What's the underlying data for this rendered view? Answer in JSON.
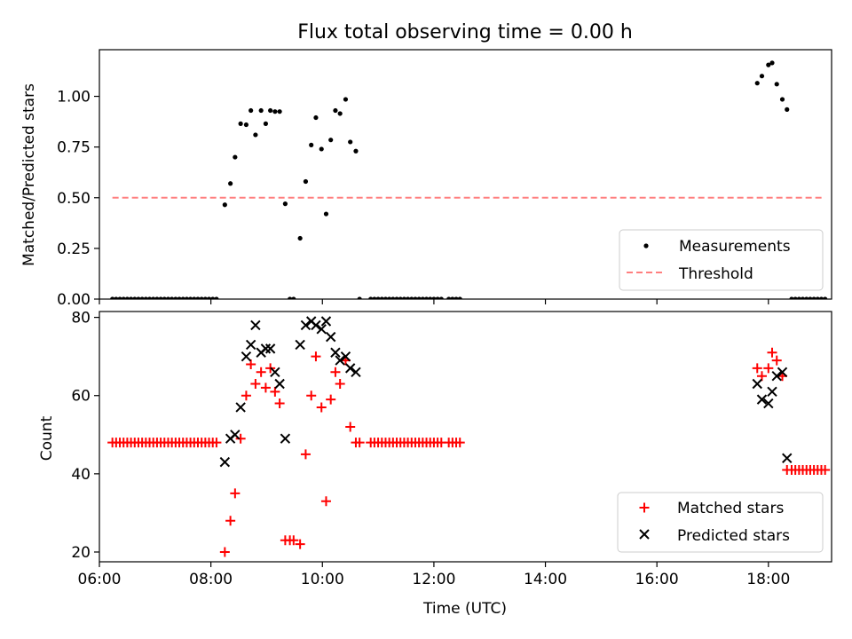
{
  "chart_data": [
    {
      "type": "scatter",
      "panel": "top",
      "title": "Flux total observing time = 0.00 h",
      "xlabel": "",
      "ylabel": "Matched/Predicted stars",
      "xlim": [
        "06:00",
        "19:08"
      ],
      "ylim": [
        0.0,
        1.23
      ],
      "yticks": [
        "0.00",
        "0.25",
        "0.50",
        "0.75",
        "1.00"
      ],
      "ytick_values": [
        0.0,
        0.25,
        0.5,
        0.75,
        1.0
      ],
      "grid": false,
      "legend_position": "lower-right",
      "legend": [
        "Measurements",
        "Threshold"
      ],
      "series": [
        {
          "name": "Measurements",
          "style": "dot",
          "color": "#000000",
          "points": [
            [
              "06:14",
              0
            ],
            [
              "06:18",
              0
            ],
            [
              "06:22",
              0
            ],
            [
              "06:26",
              0
            ],
            [
              "06:30",
              0
            ],
            [
              "06:34",
              0
            ],
            [
              "06:38",
              0
            ],
            [
              "06:42",
              0
            ],
            [
              "06:46",
              0
            ],
            [
              "06:50",
              0
            ],
            [
              "06:54",
              0
            ],
            [
              "06:58",
              0
            ],
            [
              "07:02",
              0
            ],
            [
              "07:06",
              0
            ],
            [
              "07:10",
              0
            ],
            [
              "07:14",
              0
            ],
            [
              "07:18",
              0
            ],
            [
              "07:22",
              0
            ],
            [
              "07:26",
              0
            ],
            [
              "07:30",
              0
            ],
            [
              "07:34",
              0
            ],
            [
              "07:38",
              0
            ],
            [
              "07:42",
              0
            ],
            [
              "07:46",
              0
            ],
            [
              "07:50",
              0
            ],
            [
              "07:54",
              0
            ],
            [
              "07:58",
              0
            ],
            [
              "08:02",
              0
            ],
            [
              "08:06",
              0
            ],
            [
              "08:15",
              0.465
            ],
            [
              "08:21",
              0.57
            ],
            [
              "08:26",
              0.7
            ],
            [
              "08:32",
              0.865
            ],
            [
              "08:38",
              0.86
            ],
            [
              "08:43",
              0.93
            ],
            [
              "08:48",
              0.81
            ],
            [
              "08:54",
              0.93
            ],
            [
              "08:59",
              0.865
            ],
            [
              "09:04",
              0.93
            ],
            [
              "09:09",
              0.925
            ],
            [
              "09:14",
              0.925
            ],
            [
              "09:20",
              0.47
            ],
            [
              "09:25",
              0
            ],
            [
              "09:29",
              0
            ],
            [
              "09:36",
              0.3
            ],
            [
              "09:42",
              0.58
            ],
            [
              "09:48",
              0.76
            ],
            [
              "09:53",
              0.895
            ],
            [
              "09:59",
              0.74
            ],
            [
              "10:04",
              0.42
            ],
            [
              "10:09",
              0.785
            ],
            [
              "10:14",
              0.93
            ],
            [
              "10:19",
              0.915
            ],
            [
              "10:25",
              0.985
            ],
            [
              "10:30",
              0.775
            ],
            [
              "10:36",
              0.73
            ],
            [
              "10:40",
              0
            ],
            [
              "10:52",
              0
            ],
            [
              "10:56",
              0
            ],
            [
              "11:00",
              0
            ],
            [
              "11:04",
              0
            ],
            [
              "11:08",
              0
            ],
            [
              "11:12",
              0
            ],
            [
              "11:16",
              0
            ],
            [
              "11:20",
              0
            ],
            [
              "11:24",
              0
            ],
            [
              "11:28",
              0
            ],
            [
              "11:32",
              0
            ],
            [
              "11:36",
              0
            ],
            [
              "11:40",
              0
            ],
            [
              "11:44",
              0
            ],
            [
              "11:48",
              0
            ],
            [
              "11:52",
              0
            ],
            [
              "11:56",
              0
            ],
            [
              "12:00",
              0
            ],
            [
              "12:04",
              0
            ],
            [
              "12:08",
              0
            ],
            [
              "12:16",
              0
            ],
            [
              "12:20",
              0
            ],
            [
              "12:24",
              0
            ],
            [
              "12:28",
              0
            ],
            [
              "17:48",
              1.065
            ],
            [
              "17:53",
              1.1
            ],
            [
              "18:00",
              1.155
            ],
            [
              "18:04",
              1.165
            ],
            [
              "18:09",
              1.06
            ],
            [
              "18:15",
              0.985
            ],
            [
              "18:20",
              0.935
            ],
            [
              "18:25",
              0
            ],
            [
              "18:29",
              0
            ],
            [
              "18:33",
              0
            ],
            [
              "18:37",
              0
            ],
            [
              "18:41",
              0
            ],
            [
              "18:45",
              0
            ],
            [
              "18:49",
              0
            ],
            [
              "18:53",
              0
            ],
            [
              "18:57",
              0
            ],
            [
              "19:01",
              0
            ]
          ]
        },
        {
          "name": "Threshold",
          "style": "dashed-line",
          "color": "#ff7f7f",
          "points": [
            [
              "06:14",
              0.5
            ],
            [
              "19:01",
              0.5
            ]
          ]
        }
      ]
    },
    {
      "type": "scatter",
      "panel": "bottom",
      "title": "",
      "xlabel": "Time (UTC)",
      "ylabel": "Count",
      "xlim": [
        "06:00",
        "19:08"
      ],
      "ylim": [
        17.5,
        81.5
      ],
      "xticks": [
        "06:00",
        "08:00",
        "10:00",
        "12:00",
        "14:00",
        "16:00",
        "18:00"
      ],
      "yticks": [
        "20",
        "40",
        "60",
        "80"
      ],
      "ytick_values": [
        20,
        40,
        60,
        80
      ],
      "grid": false,
      "legend_position": "lower-right",
      "legend": [
        "Matched stars",
        "Predicted stars"
      ],
      "series": [
        {
          "name": "Matched stars",
          "marker": "plus",
          "color": "#ff0000",
          "points": [
            [
              "06:14",
              48
            ],
            [
              "06:18",
              48
            ],
            [
              "06:22",
              48
            ],
            [
              "06:26",
              48
            ],
            [
              "06:30",
              48
            ],
            [
              "06:34",
              48
            ],
            [
              "06:38",
              48
            ],
            [
              "06:42",
              48
            ],
            [
              "06:46",
              48
            ],
            [
              "06:50",
              48
            ],
            [
              "06:54",
              48
            ],
            [
              "06:58",
              48
            ],
            [
              "07:02",
              48
            ],
            [
              "07:06",
              48
            ],
            [
              "07:10",
              48
            ],
            [
              "07:14",
              48
            ],
            [
              "07:18",
              48
            ],
            [
              "07:22",
              48
            ],
            [
              "07:26",
              48
            ],
            [
              "07:30",
              48
            ],
            [
              "07:34",
              48
            ],
            [
              "07:38",
              48
            ],
            [
              "07:42",
              48
            ],
            [
              "07:46",
              48
            ],
            [
              "07:50",
              48
            ],
            [
              "07:54",
              48
            ],
            [
              "07:58",
              48
            ],
            [
              "08:02",
              48
            ],
            [
              "08:06",
              48
            ],
            [
              "08:15",
              20
            ],
            [
              "08:21",
              28
            ],
            [
              "08:26",
              35
            ],
            [
              "08:32",
              49
            ],
            [
              "08:38",
              60
            ],
            [
              "08:43",
              68
            ],
            [
              "08:48",
              63
            ],
            [
              "08:54",
              66
            ],
            [
              "08:59",
              62
            ],
            [
              "09:04",
              67
            ],
            [
              "09:09",
              61
            ],
            [
              "09:14",
              58
            ],
            [
              "09:20",
              23
            ],
            [
              "09:25",
              23
            ],
            [
              "09:29",
              23
            ],
            [
              "09:36",
              22
            ],
            [
              "09:42",
              45
            ],
            [
              "09:48",
              60
            ],
            [
              "09:53",
              70
            ],
            [
              "09:59",
              57
            ],
            [
              "10:04",
              33
            ],
            [
              "10:09",
              59
            ],
            [
              "10:14",
              66
            ],
            [
              "10:19",
              63
            ],
            [
              "10:25",
              69
            ],
            [
              "10:30",
              52
            ],
            [
              "10:36",
              48
            ],
            [
              "10:40",
              48
            ],
            [
              "10:52",
              48
            ],
            [
              "10:56",
              48
            ],
            [
              "11:00",
              48
            ],
            [
              "11:04",
              48
            ],
            [
              "11:08",
              48
            ],
            [
              "11:12",
              48
            ],
            [
              "11:16",
              48
            ],
            [
              "11:20",
              48
            ],
            [
              "11:24",
              48
            ],
            [
              "11:28",
              48
            ],
            [
              "11:32",
              48
            ],
            [
              "11:36",
              48
            ],
            [
              "11:40",
              48
            ],
            [
              "11:44",
              48
            ],
            [
              "11:48",
              48
            ],
            [
              "11:52",
              48
            ],
            [
              "11:56",
              48
            ],
            [
              "12:00",
              48
            ],
            [
              "12:04",
              48
            ],
            [
              "12:08",
              48
            ],
            [
              "12:16",
              48
            ],
            [
              "12:20",
              48
            ],
            [
              "12:24",
              48
            ],
            [
              "12:28",
              48
            ],
            [
              "17:48",
              67
            ],
            [
              "17:53",
              65
            ],
            [
              "18:00",
              67
            ],
            [
              "18:04",
              71
            ],
            [
              "18:09",
              69
            ],
            [
              "18:15",
              65
            ],
            [
              "18:20",
              41
            ],
            [
              "18:25",
              41
            ],
            [
              "18:29",
              41
            ],
            [
              "18:33",
              41
            ],
            [
              "18:37",
              41
            ],
            [
              "18:41",
              41
            ],
            [
              "18:45",
              41
            ],
            [
              "18:49",
              41
            ],
            [
              "18:53",
              41
            ],
            [
              "18:57",
              41
            ],
            [
              "19:01",
              41
            ]
          ]
        },
        {
          "name": "Predicted stars",
          "marker": "x",
          "color": "#000000",
          "points": [
            [
              "08:15",
              43
            ],
            [
              "08:21",
              49
            ],
            [
              "08:26",
              50
            ],
            [
              "08:32",
              57
            ],
            [
              "08:38",
              70
            ],
            [
              "08:43",
              73
            ],
            [
              "08:48",
              78
            ],
            [
              "08:54",
              71
            ],
            [
              "08:59",
              72
            ],
            [
              "09:04",
              72
            ],
            [
              "09:09",
              66
            ],
            [
              "09:14",
              63
            ],
            [
              "09:20",
              49
            ],
            [
              "09:36",
              73
            ],
            [
              "09:42",
              78
            ],
            [
              "09:48",
              79
            ],
            [
              "09:53",
              78
            ],
            [
              "09:59",
              77
            ],
            [
              "10:04",
              79
            ],
            [
              "10:09",
              75
            ],
            [
              "10:14",
              71
            ],
            [
              "10:19",
              69
            ],
            [
              "10:25",
              70
            ],
            [
              "10:30",
              67
            ],
            [
              "10:36",
              66
            ],
            [
              "17:48",
              63
            ],
            [
              "17:53",
              59
            ],
            [
              "18:00",
              58
            ],
            [
              "18:04",
              61
            ],
            [
              "18:09",
              65
            ],
            [
              "18:15",
              66
            ],
            [
              "18:20",
              44
            ]
          ]
        }
      ]
    }
  ]
}
